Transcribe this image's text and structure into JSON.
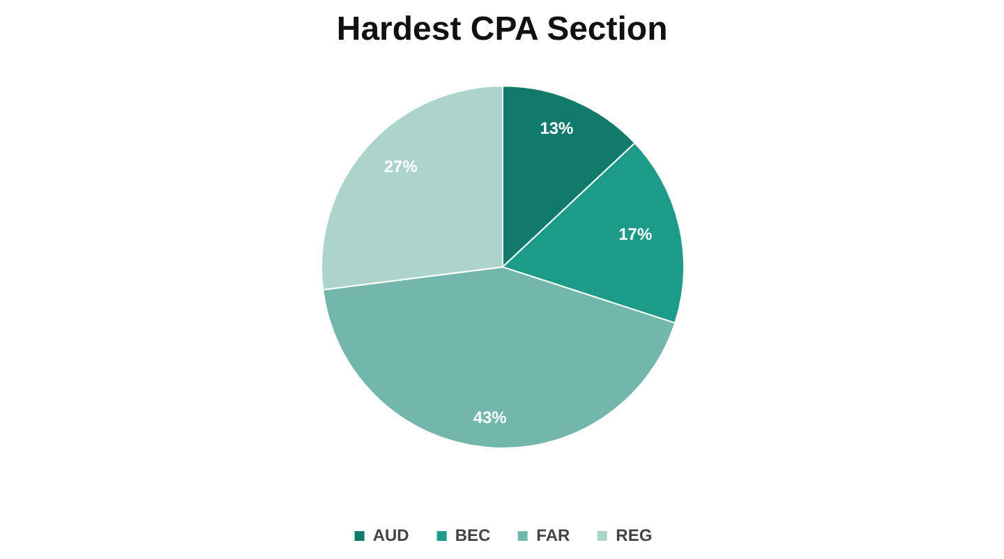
{
  "chart_data": {
    "type": "pie",
    "title": "Hardest CPA Section",
    "categories": [
      "AUD",
      "BEC",
      "FAR",
      "REG"
    ],
    "values": [
      13,
      17,
      43,
      27
    ],
    "colors": [
      "#127a6b",
      "#1d9b89",
      "#72b6ac",
      "#acd4cd"
    ],
    "value_labels": [
      "13%",
      "17%",
      "43%",
      "27%"
    ],
    "legend": "bottom"
  }
}
